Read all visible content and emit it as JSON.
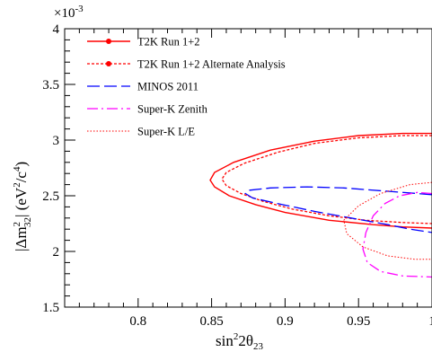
{
  "chart_data": {
    "type": "line",
    "xlabel": {
      "base": "sin",
      "sup": "2",
      "mid": "2θ",
      "sub": "23"
    },
    "ylabel": {
      "open": "|Δm",
      "sup": "2",
      "sub": "32",
      "mid": "| (eV",
      "sup2": "2",
      "mid2": "/c",
      "sup3": "4",
      "close": ")"
    },
    "y_multiplier": {
      "base": "×10",
      "exp": "-3"
    },
    "xlim": [
      0.75,
      1.0
    ],
    "ylim": [
      1.5,
      4.0
    ],
    "x_ticks": [
      {
        "value": 0.8,
        "label": "0.8"
      },
      {
        "value": 0.85,
        "label": "0.85"
      },
      {
        "value": 0.9,
        "label": "0.9"
      },
      {
        "value": 0.95,
        "label": "0.95"
      },
      {
        "value": 1.0,
        "label": "1"
      }
    ],
    "y_ticks": [
      {
        "value": 1.5,
        "label": "1.5"
      },
      {
        "value": 2.0,
        "label": "2"
      },
      {
        "value": 2.5,
        "label": "2.5"
      },
      {
        "value": 3.0,
        "label": "3"
      },
      {
        "value": 3.5,
        "label": "3.5"
      },
      {
        "value": 4.0,
        "label": "4"
      }
    ],
    "grid": false,
    "legend_position": "top-left",
    "series": [
      {
        "name": "T2K Run 1+2",
        "color": "#ff0000",
        "style": "solid",
        "marker": "circle",
        "points": [
          [
            1.0,
            3.06
          ],
          [
            0.98,
            3.06
          ],
          [
            0.95,
            3.04
          ],
          [
            0.92,
            2.99
          ],
          [
            0.89,
            2.91
          ],
          [
            0.865,
            2.8
          ],
          [
            0.852,
            2.71
          ],
          [
            0.849,
            2.64
          ],
          [
            0.852,
            2.58
          ],
          [
            0.862,
            2.5
          ],
          [
            0.88,
            2.42
          ],
          [
            0.9,
            2.35
          ],
          [
            0.93,
            2.28
          ],
          [
            0.96,
            2.24
          ],
          [
            0.98,
            2.22
          ],
          [
            1.0,
            2.21
          ]
        ]
      },
      {
        "name": "T2K Run 1+2 Alternate Analysis",
        "color": "#ff0000",
        "style": "dotted",
        "marker": "circle",
        "points": [
          [
            1.0,
            3.04
          ],
          [
            0.98,
            3.04
          ],
          [
            0.95,
            3.02
          ],
          [
            0.92,
            2.97
          ],
          [
            0.895,
            2.89
          ],
          [
            0.872,
            2.79
          ],
          [
            0.86,
            2.71
          ],
          [
            0.857,
            2.65
          ],
          [
            0.86,
            2.59
          ],
          [
            0.87,
            2.52
          ],
          [
            0.885,
            2.45
          ],
          [
            0.905,
            2.38
          ],
          [
            0.93,
            2.32
          ],
          [
            0.955,
            2.28
          ],
          [
            0.98,
            2.26
          ],
          [
            1.0,
            2.25
          ]
        ]
      },
      {
        "name": "MINOS 2011",
        "color": "#0000ff",
        "style": "dashed",
        "marker": "",
        "points": [
          [
            1.0,
            2.51
          ],
          [
            0.97,
            2.54
          ],
          [
            0.94,
            2.57
          ],
          [
            0.915,
            2.58
          ],
          [
            0.89,
            2.57
          ],
          [
            0.876,
            2.55
          ],
          [
            0.873,
            2.52
          ],
          [
            0.878,
            2.48
          ],
          [
            0.895,
            2.43
          ],
          [
            0.92,
            2.36
          ],
          [
            0.945,
            2.3
          ],
          [
            0.97,
            2.24
          ],
          [
            0.985,
            2.2
          ],
          [
            1.0,
            2.17
          ]
        ]
      },
      {
        "name": "Super-K Zenith",
        "color": "#ff00ff",
        "style": "dashdot",
        "marker": "",
        "points": [
          [
            1.0,
            2.52
          ],
          [
            0.99,
            2.53
          ],
          [
            0.978,
            2.5
          ],
          [
            0.968,
            2.43
          ],
          [
            0.96,
            2.32
          ],
          [
            0.955,
            2.17
          ],
          [
            0.953,
            2.02
          ],
          [
            0.956,
            1.9
          ],
          [
            0.965,
            1.82
          ],
          [
            0.98,
            1.78
          ],
          [
            1.0,
            1.77
          ]
        ]
      },
      {
        "name": "Super-K L/E",
        "color": "#ff0000",
        "style": "dotted-fine",
        "marker": "",
        "points": [
          [
            1.0,
            2.62
          ],
          [
            0.985,
            2.6
          ],
          [
            0.965,
            2.52
          ],
          [
            0.95,
            2.41
          ],
          [
            0.94,
            2.28
          ],
          [
            0.942,
            2.16
          ],
          [
            0.953,
            2.04
          ],
          [
            0.97,
            1.96
          ],
          [
            0.988,
            1.93
          ],
          [
            1.0,
            1.93
          ]
        ]
      }
    ]
  }
}
